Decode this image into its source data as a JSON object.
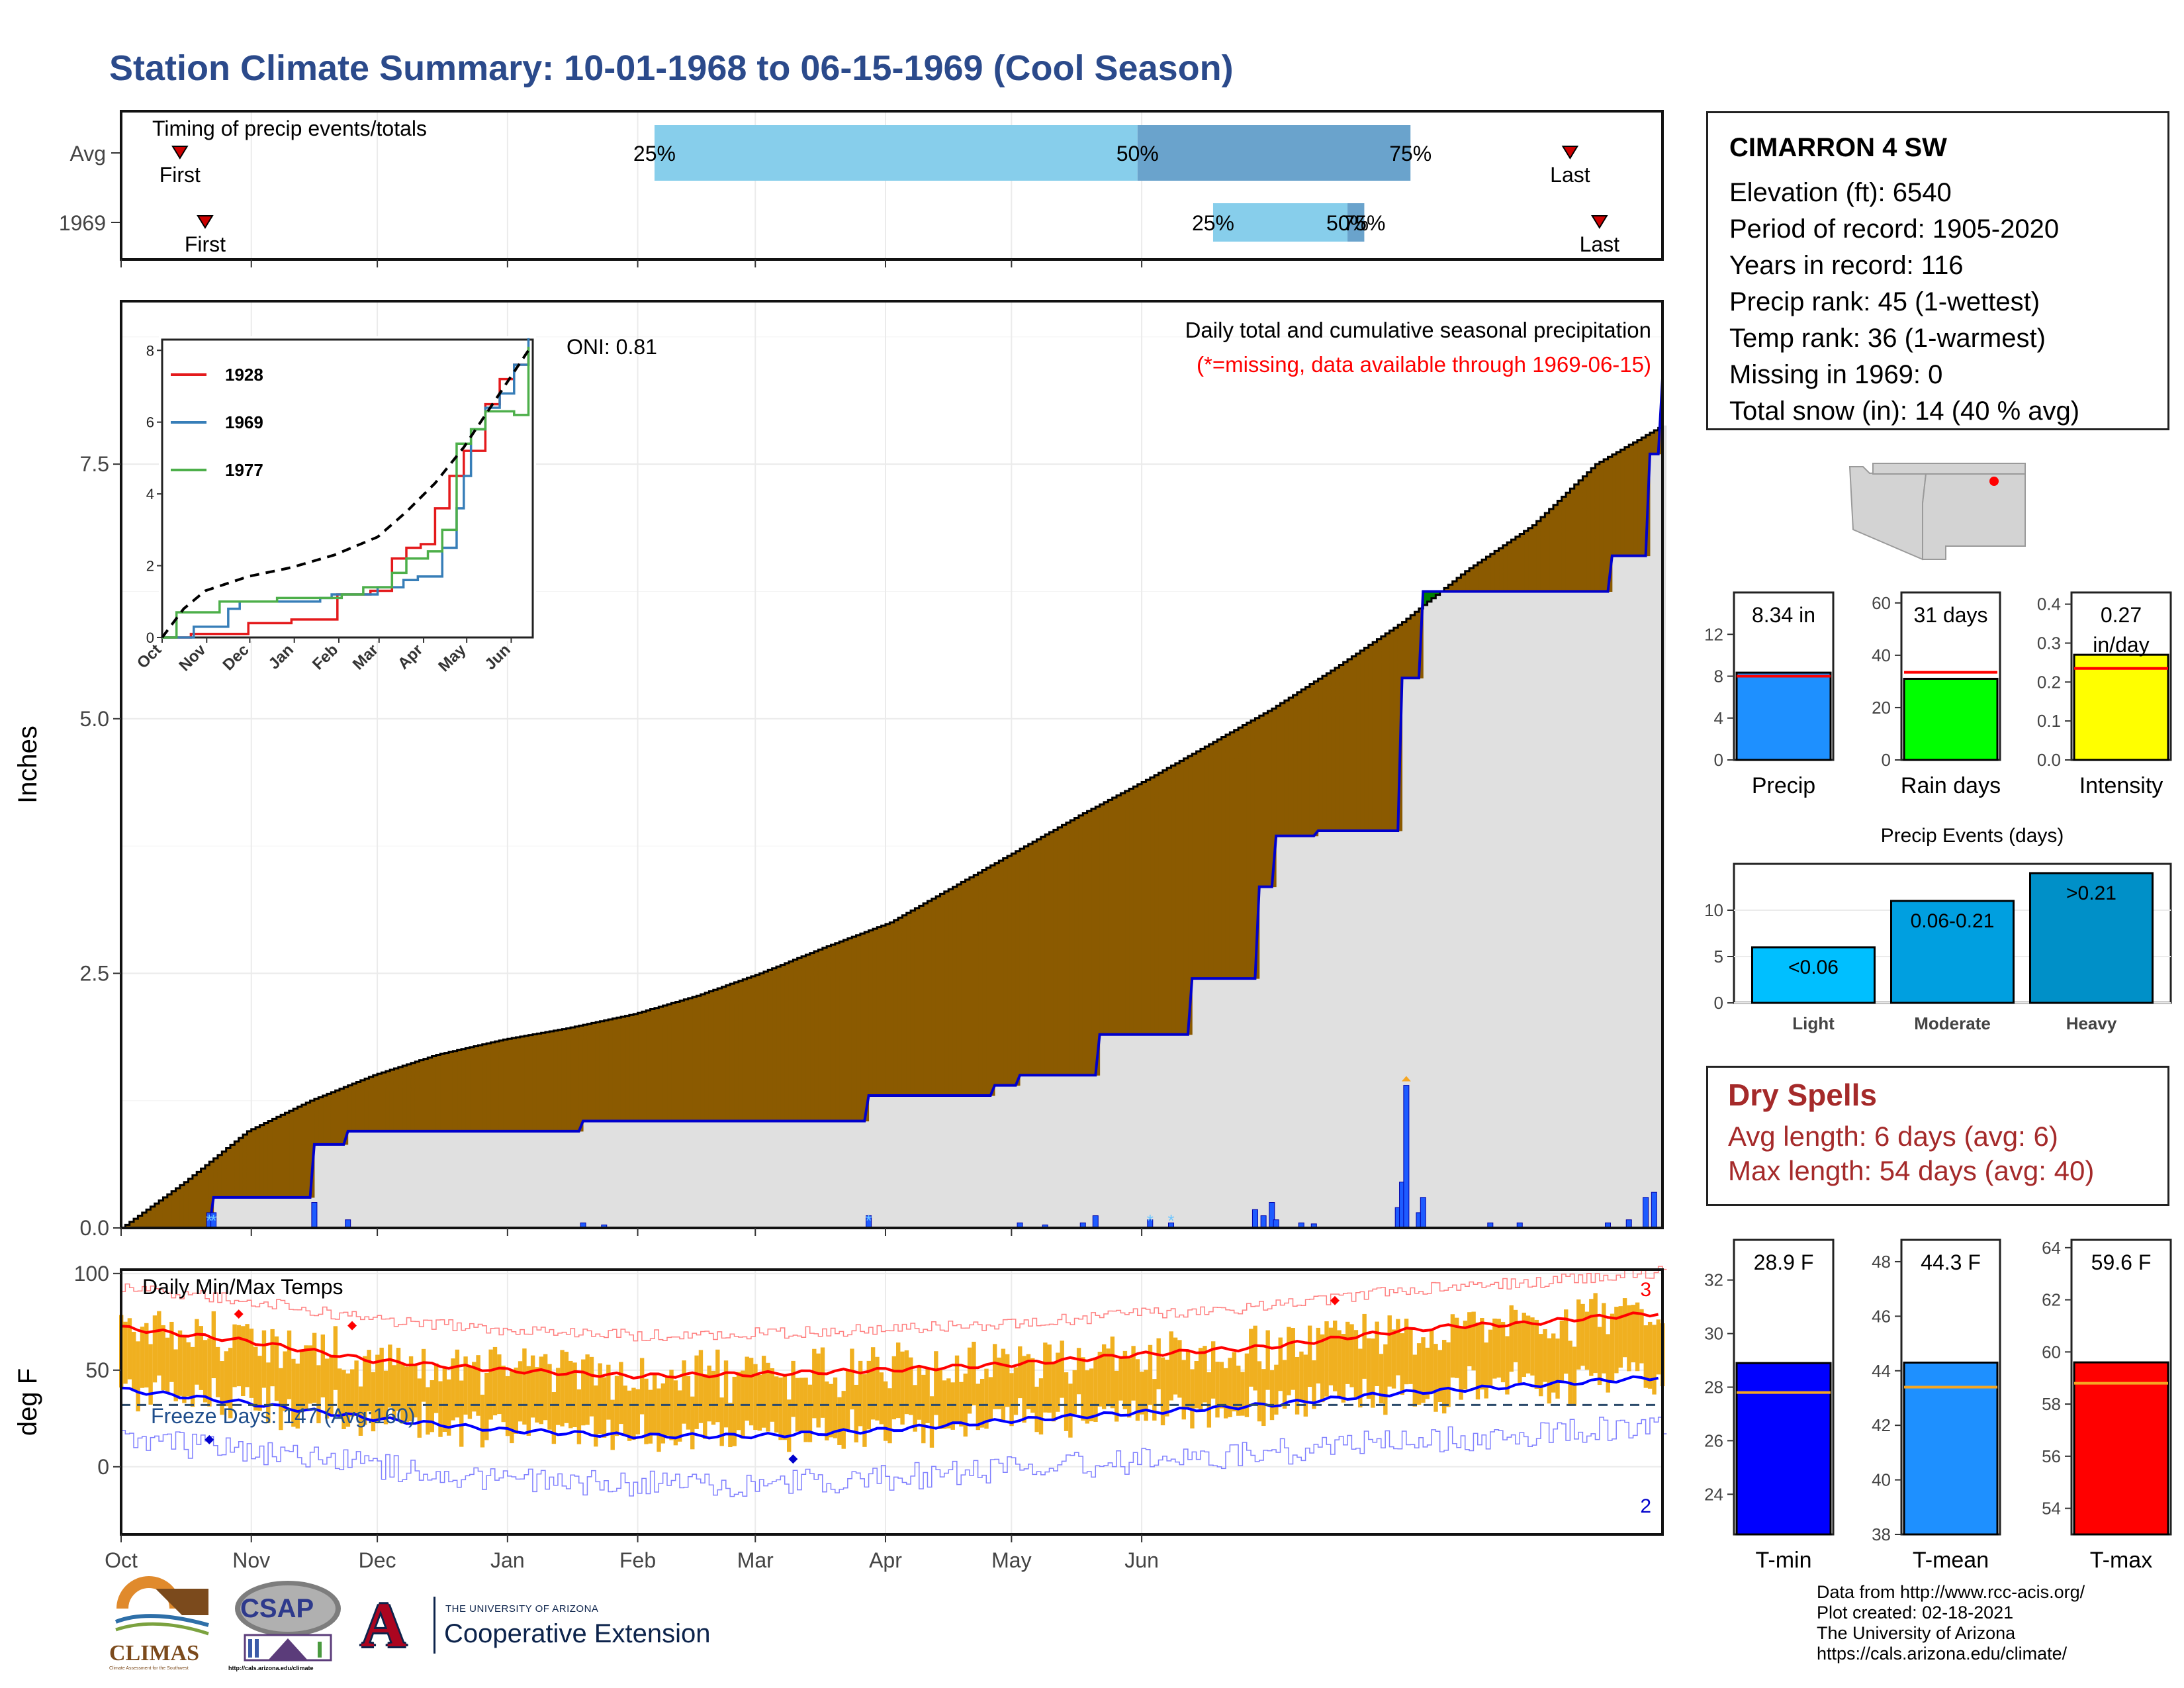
{
  "title": "Station Climate Summary: 10-01-1968 to 06-15-1969 (Cool Season)",
  "months": [
    "Oct",
    "Nov",
    "Dec",
    "Jan",
    "Feb",
    "Mar",
    "Apr",
    "May",
    "Jun"
  ],
  "timing": {
    "title": "Timing of precip events/totals",
    "rows": [
      {
        "label": "Avg",
        "first_day": 15,
        "q25": 128,
        "q50": 243,
        "q75": 308,
        "last_day": 346,
        "first_label": "First",
        "last_label": "Last",
        "p25_label": "25%",
        "p50_label": "50%",
        "p75_label": "75%"
      },
      {
        "label": "1969",
        "first_day": 21,
        "q25": 261,
        "q50": 293,
        "q75": 297,
        "last_day": 353,
        "first_label": "First",
        "last_label": "Last",
        "p25_label": "25%",
        "p50_label": "50%",
        "p75_label": "75%"
      }
    ],
    "colors": {
      "light": "#87CEEB",
      "dark": "#6AA3CC",
      "marker": "#CC0000"
    }
  },
  "precip": {
    "ylabel": "Inches",
    "yticks": [
      "0.0",
      "2.5",
      "5.0",
      "7.5"
    ],
    "ylim": [
      0,
      9.1
    ],
    "oni_label": "ONI: 0.81",
    "note1": "Daily total and cumulative seasonal precipitation",
    "note2": "(*=missing, data available through 1969-06-15)",
    "colors": {
      "avg_fill": "#8B5A00",
      "surplus_fill": "#008000",
      "cum_line": "#0000CC",
      "bars": "#1E5BFF",
      "below_fill": "#E0E0E0"
    }
  },
  "chart_data": [
    {
      "type": "area",
      "title": "Daily total and cumulative seasonal precipitation",
      "ylabel": "Inches",
      "x_unit": "day of season (1 = Oct 1)",
      "ylim": [
        0,
        9.1
      ],
      "series": [
        {
          "name": "average cumulative",
          "x": [
            1,
            16,
            31,
            46,
            61,
            76,
            92,
            107,
            123,
            138,
            153,
            168,
            184,
            199,
            214,
            229,
            245,
            260,
            275,
            290,
            306,
            321,
            337,
            352,
            368
          ],
          "y": [
            0.0,
            0.45,
            0.95,
            1.25,
            1.5,
            1.7,
            1.85,
            1.96,
            2.1,
            2.28,
            2.5,
            2.75,
            3.0,
            3.35,
            3.7,
            4.05,
            4.4,
            4.75,
            5.1,
            5.5,
            5.95,
            6.45,
            6.9,
            7.5,
            7.88
          ]
        },
        {
          "name": "1969 cumulative",
          "x": [
            1,
            22,
            23,
            46,
            47,
            54,
            55,
            110,
            111,
            178,
            179,
            208,
            209,
            214,
            215,
            233,
            234,
            255,
            256,
            271,
            272,
            275,
            276,
            285,
            286,
            305,
            306,
            310,
            311,
            355,
            356,
            364,
            365,
            367,
            368
          ],
          "y": [
            0,
            0,
            0.3,
            0.3,
            0.82,
            0.82,
            0.95,
            0.95,
            1.05,
            1.05,
            1.3,
            1.3,
            1.4,
            1.4,
            1.5,
            1.5,
            1.9,
            1.9,
            2.45,
            2.45,
            3.35,
            3.35,
            3.85,
            3.85,
            3.9,
            3.9,
            5.4,
            5.4,
            6.25,
            6.25,
            6.6,
            6.6,
            7.6,
            7.6,
            8.34
          ]
        },
        {
          "name": "daily precip",
          "x": [
            22,
            23,
            47,
            55,
            111,
            116,
            179,
            215,
            221,
            230,
            233,
            246,
            251,
            271,
            273,
            275,
            276,
            282,
            285,
            305,
            306,
            307,
            310,
            311,
            327,
            334,
            355,
            360,
            364,
            366
          ],
          "y": [
            0.15,
            0.15,
            0.25,
            0.08,
            0.05,
            0.03,
            0.12,
            0.05,
            0.03,
            0.05,
            0.12,
            0.08,
            0.05,
            0.18,
            0.12,
            0.25,
            0.08,
            0.05,
            0.04,
            0.2,
            0.45,
            1.4,
            0.15,
            0.3,
            0.05,
            0.05,
            0.05,
            0.08,
            0.3,
            0.35
          ]
        }
      ]
    },
    {
      "type": "line",
      "title": "Daily Min/Max Temps",
      "ylabel": "deg F",
      "ylim": [
        -35,
        102
      ],
      "x_unit": "day of season (1 = Oct 1)",
      "series": [
        {
          "name": "avg max",
          "x": [
            1,
            31,
            61,
            92,
            123,
            153,
            182,
            213,
            243,
            274,
            289,
            304,
            320,
            335,
            350,
            365,
            368
          ],
          "y": [
            72,
            65,
            55,
            50,
            47,
            48,
            50,
            53,
            58,
            62,
            66,
            70,
            73,
            74,
            77,
            79,
            80
          ]
        },
        {
          "name": "avg min",
          "x": [
            1,
            31,
            61,
            92,
            123,
            153,
            182,
            213,
            243,
            274,
            289,
            304,
            320,
            335,
            350,
            365,
            368
          ],
          "y": [
            40,
            33,
            25,
            19,
            16,
            16,
            19,
            24,
            28,
            32,
            35,
            38,
            40,
            42,
            44,
            46,
            47
          ]
        },
        {
          "name": "freeze line",
          "x": [
            1,
            368
          ],
          "y": [
            32,
            32
          ]
        }
      ]
    },
    {
      "type": "line",
      "title": "",
      "x_ticks": [
        "Oct",
        "Nov",
        "Dec",
        "Jan",
        "Feb",
        "Mar",
        "Apr",
        "May",
        "Jun"
      ],
      "yticks": [
        "0",
        "2",
        "4",
        "6",
        "8"
      ],
      "ylim": [
        0,
        8.3
      ],
      "series": [
        {
          "name": "1928",
          "color": "#E41A1C",
          "x": [
            0,
            20,
            60,
            90,
            120,
            122,
            145,
            160,
            170,
            180,
            190,
            200,
            210,
            215,
            225,
            235,
            245,
            255
          ],
          "y": [
            0,
            0.1,
            0.4,
            0.5,
            0.5,
            1.2,
            1.3,
            2.2,
            2.5,
            2.6,
            3.6,
            4.5,
            5.2,
            5.2,
            6.5,
            7.2,
            7.6,
            8.0
          ]
        },
        {
          "name": "1969",
          "color": "#377EB8",
          "x": [
            0,
            22,
            46,
            54,
            110,
            118,
            150,
            168,
            178,
            195,
            205,
            210,
            215,
            225,
            235,
            245,
            255
          ],
          "y": [
            0,
            0.3,
            0.8,
            1.0,
            1.1,
            1.2,
            1.4,
            1.6,
            1.7,
            2.5,
            3.6,
            4.5,
            5.8,
            6.4,
            6.8,
            7.6,
            8.34
          ]
        },
        {
          "name": "1977",
          "color": "#4DAF4A",
          "x": [
            0,
            10,
            40,
            80,
            125,
            140,
            160,
            170,
            185,
            195,
            205,
            215,
            225,
            235,
            245,
            255
          ],
          "y": [
            0,
            0.7,
            1.0,
            1.1,
            1.2,
            1.4,
            1.8,
            2.2,
            2.4,
            3.0,
            5.4,
            5.8,
            6.3,
            6.3,
            6.2,
            8.1
          ]
        },
        {
          "name": "average",
          "color": "#000000",
          "x": [
            0,
            15,
            30,
            60,
            90,
            120,
            150,
            170,
            190,
            210,
            230,
            255
          ],
          "y": [
            0,
            0.8,
            1.3,
            1.7,
            1.95,
            2.3,
            2.8,
            3.5,
            4.3,
            5.3,
            6.5,
            8.0
          ]
        }
      ]
    },
    {
      "type": "bar",
      "categories": [
        "Precip",
        "Rain days",
        "Intensity"
      ],
      "values": [
        8.34,
        31,
        0.27
      ],
      "value_labels": [
        "8.34 in",
        "31 days",
        "0.27 in/day"
      ],
      "averages": [
        8.0,
        33.5,
        0.235
      ],
      "ylims": [
        [
          0,
          16
        ],
        [
          0,
          64
        ],
        [
          0,
          0.43
        ]
      ],
      "yticks": [
        [
          "0",
          "4",
          "8",
          "12"
        ],
        [
          "0",
          "20",
          "40",
          "60"
        ],
        [
          "0.0",
          "0.1",
          "0.2",
          "0.3",
          "0.4"
        ]
      ],
      "colors": [
        "#1E90FF",
        "#00FF00",
        "#FFFF00"
      ]
    },
    {
      "type": "bar",
      "title": "Precip Events (days)",
      "categories": [
        "Light",
        "Moderate",
        "Heavy"
      ],
      "bar_labels": [
        "<0.06",
        "0.06-0.21",
        ">0.21"
      ],
      "values": [
        6,
        11,
        14
      ],
      "ylim": [
        0,
        15
      ],
      "yticks": [
        "0",
        "5",
        "10"
      ],
      "colors": [
        "#00BFFF",
        "#009FE0",
        "#0090C8"
      ]
    },
    {
      "type": "bar",
      "categories": [
        "T-min",
        "T-mean",
        "T-max"
      ],
      "values": [
        28.9,
        44.3,
        59.6
      ],
      "value_labels": [
        "28.9 F",
        "44.3 F",
        "59.6 F"
      ],
      "averages": [
        27.8,
        43.4,
        58.8
      ],
      "ylims": [
        [
          22.5,
          33.5
        ],
        [
          38,
          48.8
        ],
        [
          53,
          64.3
        ]
      ],
      "yticks": [
        [
          "24",
          "26",
          "28",
          "30",
          "32"
        ],
        [
          "38",
          "40",
          "42",
          "44",
          "46",
          "48"
        ],
        [
          "54",
          "56",
          "58",
          "60",
          "62",
          "64"
        ]
      ],
      "colors": [
        "#0000FF",
        "#1E90FF",
        "#FF0000"
      ]
    }
  ],
  "temps": {
    "title": "Daily Min/Max Temps",
    "ylabel": "deg F",
    "yticks": [
      "0",
      "50",
      "100"
    ],
    "freeze_label": "Freeze Days: 147 (Avg:160)",
    "record_high_count": "3",
    "record_low_count": "2",
    "colors": {
      "bars": "#F0B020",
      "max": "#FF0000",
      "min": "#0000FF",
      "freeze": "#2B4A6B"
    }
  },
  "inset": {
    "legend": [
      "1928",
      "1969",
      "1977"
    ],
    "months": [
      "Oct",
      "Nov",
      "Dec",
      "Jan",
      "Feb",
      "Mar",
      "Apr",
      "May",
      "Jun"
    ],
    "yticks": [
      "0",
      "2",
      "4",
      "6",
      "8"
    ]
  },
  "station": {
    "name": "CIMARRON 4 SW",
    "lines": [
      "Elevation (ft): 6540",
      "Period of record: 1905-2020",
      "Years in record: 116",
      "Precip rank: 45 (1-wettest)",
      "Temp rank: 36 (1-warmest)",
      "Missing in 1969: 0",
      "Total snow (in): 14 (40 % avg)"
    ]
  },
  "minibars": {
    "precip_labels": [
      "Precip",
      "Rain days",
      "Intensity"
    ],
    "precip_values": [
      "8.34 in",
      "31 days",
      "0.27",
      "in/day"
    ],
    "events_title": "Precip Events (days)",
    "events_labels": [
      "Light",
      "Moderate",
      "Heavy"
    ],
    "events_bar_labels": [
      "<0.06",
      "0.06-0.21",
      ">0.21"
    ],
    "temp_labels": [
      "T-min",
      "T-mean",
      "T-max"
    ],
    "temp_values": [
      "28.9 F",
      "44.3 F",
      "59.6 F"
    ]
  },
  "dry": {
    "title": "Dry Spells",
    "avg": "Avg length: 6 days (avg: 6)",
    "max": "Max length: 54 days (avg: 40)"
  },
  "footer": {
    "lines": [
      "Data from http://www.rcc-acis.org/",
      "Plot created: 02-18-2021",
      "The University of Arizona",
      "https://cals.arizona.edu/climate/"
    ]
  },
  "logos": {
    "climas": "CLIMAS",
    "climas_sub": "Climate Assessment for the Southwest",
    "csap": "CSAP",
    "csap_url": "http://cals.arizona.edu/climate",
    "ua_small": "THE UNIVERSITY OF ARIZONA",
    "ua_big": "Cooperative Extension",
    "ua_letter": "A"
  }
}
